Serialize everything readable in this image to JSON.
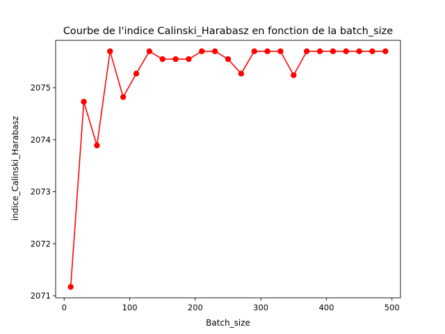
{
  "chart_data": {
    "type": "line",
    "title": "Courbe de l'indice Calinski_Harabasz en fonction de la batch_size",
    "xlabel": "Batch_size",
    "ylabel": "indice_Calinski_Harabasz",
    "xlim": [
      -13,
      513
    ],
    "ylim": [
      2070.96,
      2075.91
    ],
    "xticks": [
      0,
      100,
      200,
      300,
      400,
      500
    ],
    "yticks": [
      2071,
      2072,
      2073,
      2074,
      2075
    ],
    "grid": false,
    "legend": false,
    "line_color": "#ff0000",
    "series": [
      {
        "x": [
          10,
          30,
          50,
          70,
          90,
          110,
          130,
          150,
          170,
          190,
          210,
          230,
          250,
          270,
          290,
          310,
          330,
          350,
          370,
          390,
          410,
          430,
          450,
          470,
          490
        ],
        "values": [
          2071.17,
          2074.73,
          2073.89,
          2075.7,
          2074.82,
          2075.27,
          2075.7,
          2075.55,
          2075.55,
          2075.55,
          2075.7,
          2075.7,
          2075.55,
          2075.27,
          2075.7,
          2075.7,
          2075.7,
          2075.24,
          2075.7,
          2075.7,
          2075.7,
          2075.7,
          2075.7,
          2075.7,
          2075.7
        ]
      }
    ]
  }
}
